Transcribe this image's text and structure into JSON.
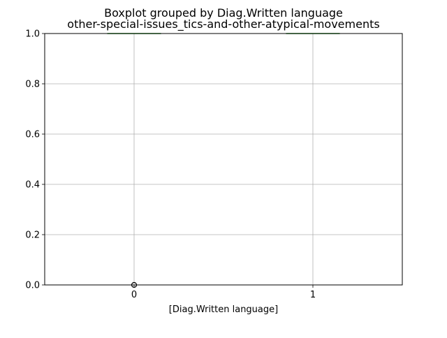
{
  "chart_data": {
    "type": "box",
    "title": "Boxplot grouped by Diag.Written language",
    "subtitle": "other-special-issues_tics-and-other-atypical-movements",
    "xlabel": "[Diag.Written language]",
    "ylabel": "",
    "categories": [
      "0",
      "1"
    ],
    "ylim": [
      0,
      1
    ],
    "y_ticks": [
      "0.0",
      "0.2",
      "0.4",
      "0.6",
      "0.8",
      "1.0"
    ],
    "grid": true,
    "boxes": [
      {
        "category": "0",
        "q1": 1.0,
        "median": 1.0,
        "q3": 1.0,
        "whisker_low": 1.0,
        "whisker_high": 1.0,
        "outliers": [
          0.0
        ]
      },
      {
        "category": "1",
        "q1": 1.0,
        "median": 1.0,
        "q3": 1.0,
        "whisker_low": 1.0,
        "whisker_high": 1.0,
        "outliers": []
      }
    ],
    "colors": {
      "box": "#1f5f3f",
      "median": "#2ca02c",
      "grid": "#b0b0b0",
      "outlier": "#000000"
    }
  }
}
